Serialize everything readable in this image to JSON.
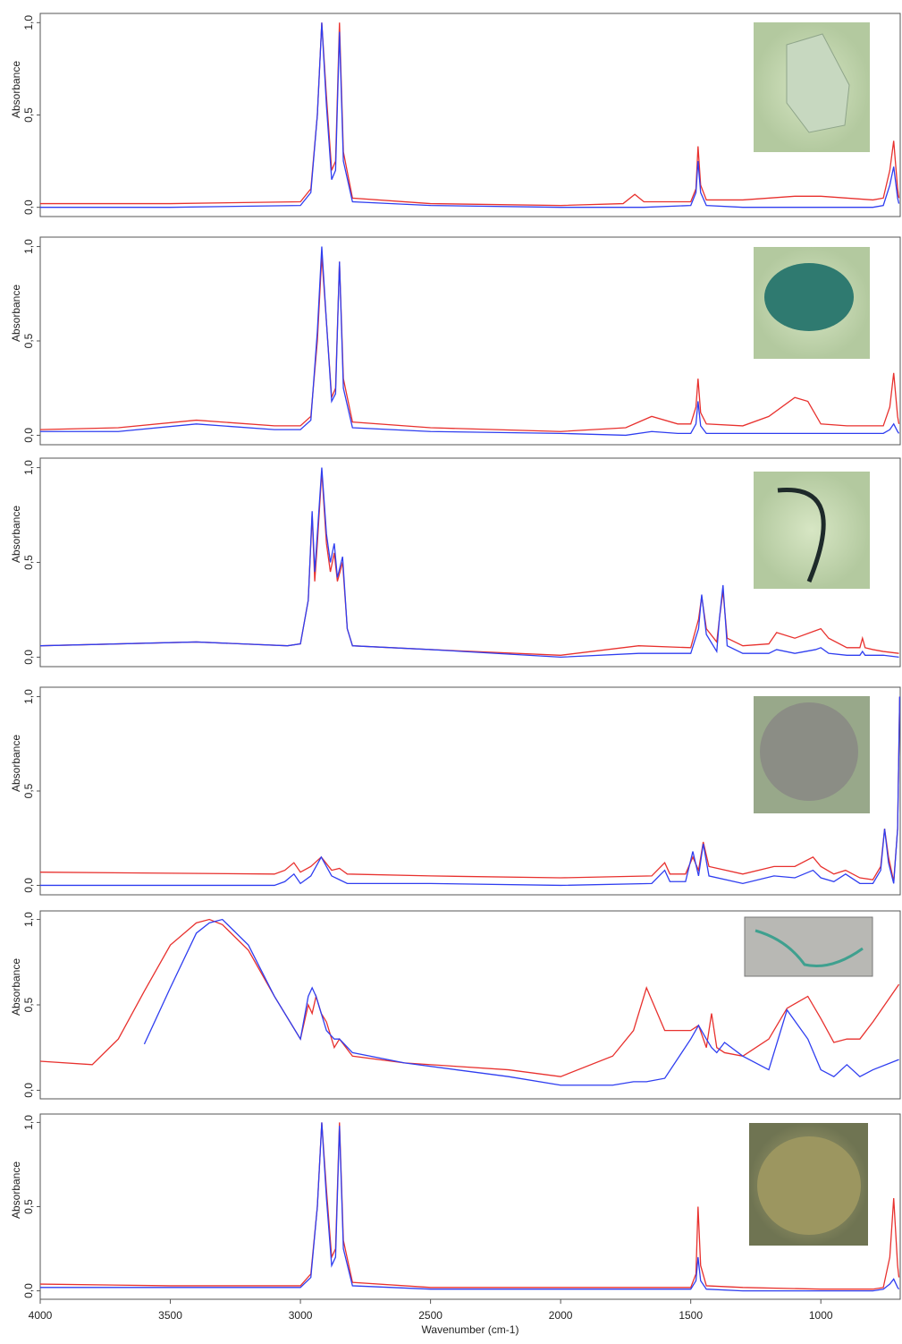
{
  "chart_data": [
    {
      "type": "line",
      "y_label": "Absorbance",
      "xlim": [
        4000,
        695
      ],
      "ylim": [
        -0.05,
        1.05
      ],
      "yticks": [
        {
          "value": 0,
          "label": "0,0"
        },
        {
          "value": 0.5,
          "label": "0,5"
        },
        {
          "value": 1,
          "label": "1,0"
        }
      ],
      "x": [
        4000,
        3500,
        3000,
        2960,
        2935,
        2918,
        2900,
        2880,
        2865,
        2850,
        2835,
        2800,
        2500,
        2000,
        1760,
        1715,
        1680,
        1500,
        1480,
        1472,
        1462,
        1440,
        1300,
        1100,
        1000,
        800,
        760,
        735,
        720,
        705,
        700
      ],
      "series": [
        {
          "color": "#e8312e",
          "values": [
            0.02,
            0.02,
            0.03,
            0.1,
            0.5,
            1.0,
            0.6,
            0.2,
            0.25,
            1.0,
            0.3,
            0.05,
            0.02,
            0.01,
            0.02,
            0.07,
            0.03,
            0.03,
            0.1,
            0.33,
            0.12,
            0.04,
            0.04,
            0.06,
            0.06,
            0.04,
            0.05,
            0.2,
            0.36,
            0.1,
            0.05
          ]
        },
        {
          "color": "#2f3ef0",
          "values": [
            0.0,
            0.0,
            0.01,
            0.08,
            0.5,
            1.0,
            0.55,
            0.15,
            0.2,
            0.95,
            0.25,
            0.03,
            0.01,
            0.0,
            0.0,
            0.0,
            0.0,
            0.01,
            0.08,
            0.25,
            0.08,
            0.01,
            0.0,
            0.0,
            0.0,
            0.0,
            0.01,
            0.12,
            0.22,
            0.05,
            0.02
          ]
        }
      ]
    },
    {
      "type": "line",
      "y_label": "Absorbance",
      "xlim": [
        4000,
        695
      ],
      "ylim": [
        -0.05,
        1.05
      ],
      "yticks": [
        {
          "value": 0,
          "label": "0,0"
        },
        {
          "value": 0.5,
          "label": "0,5"
        },
        {
          "value": 1,
          "label": "1,0"
        }
      ],
      "x": [
        4000,
        3700,
        3400,
        3100,
        3000,
        2960,
        2935,
        2918,
        2900,
        2880,
        2865,
        2850,
        2835,
        2800,
        2500,
        2000,
        1750,
        1650,
        1550,
        1500,
        1480,
        1472,
        1462,
        1440,
        1300,
        1200,
        1100,
        1050,
        1000,
        900,
        800,
        760,
        735,
        720,
        705,
        700
      ],
      "series": [
        {
          "color": "#e8312e",
          "values": [
            0.03,
            0.04,
            0.08,
            0.05,
            0.05,
            0.1,
            0.5,
            0.95,
            0.6,
            0.2,
            0.25,
            0.92,
            0.3,
            0.07,
            0.04,
            0.02,
            0.04,
            0.1,
            0.06,
            0.06,
            0.15,
            0.3,
            0.12,
            0.06,
            0.05,
            0.1,
            0.2,
            0.18,
            0.06,
            0.05,
            0.05,
            0.05,
            0.15,
            0.33,
            0.1,
            0.06
          ]
        },
        {
          "color": "#2f3ef0",
          "values": [
            0.02,
            0.02,
            0.06,
            0.03,
            0.03,
            0.08,
            0.55,
            1.0,
            0.6,
            0.18,
            0.22,
            0.92,
            0.25,
            0.04,
            0.02,
            0.01,
            0.0,
            0.02,
            0.01,
            0.01,
            0.06,
            0.18,
            0.05,
            0.01,
            0.01,
            0.01,
            0.01,
            0.01,
            0.01,
            0.01,
            0.01,
            0.01,
            0.03,
            0.06,
            0.02,
            0.01
          ]
        }
      ]
    },
    {
      "type": "line",
      "y_label": "Absorbance",
      "xlim": [
        4000,
        695
      ],
      "ylim": [
        -0.05,
        1.05
      ],
      "yticks": [
        {
          "value": 0,
          "label": "0,0"
        },
        {
          "value": 0.5,
          "label": "0,5"
        },
        {
          "value": 1,
          "label": "1,0"
        }
      ],
      "x": [
        4000,
        3400,
        3050,
        3000,
        2970,
        2955,
        2945,
        2935,
        2918,
        2900,
        2885,
        2870,
        2858,
        2838,
        2820,
        2800,
        2500,
        2000,
        1700,
        1500,
        1470,
        1458,
        1440,
        1400,
        1390,
        1376,
        1360,
        1300,
        1200,
        1170,
        1100,
        1020,
        1000,
        970,
        900,
        850,
        840,
        830,
        800,
        760,
        700
      ],
      "series": [
        {
          "color": "#e8312e",
          "values": [
            0.06,
            0.08,
            0.06,
            0.07,
            0.3,
            0.75,
            0.4,
            0.6,
            0.98,
            0.6,
            0.45,
            0.55,
            0.4,
            0.5,
            0.15,
            0.06,
            0.04,
            0.01,
            0.06,
            0.05,
            0.2,
            0.32,
            0.15,
            0.08,
            0.2,
            0.35,
            0.1,
            0.06,
            0.07,
            0.13,
            0.1,
            0.14,
            0.15,
            0.1,
            0.05,
            0.05,
            0.1,
            0.05,
            0.04,
            0.03,
            0.02
          ]
        },
        {
          "color": "#2f3ef0",
          "values": [
            0.06,
            0.08,
            0.06,
            0.07,
            0.3,
            0.77,
            0.45,
            0.65,
            1.0,
            0.65,
            0.5,
            0.6,
            0.42,
            0.53,
            0.15,
            0.06,
            0.04,
            0.0,
            0.02,
            0.02,
            0.15,
            0.33,
            0.12,
            0.03,
            0.2,
            0.38,
            0.06,
            0.02,
            0.02,
            0.04,
            0.02,
            0.04,
            0.05,
            0.02,
            0.01,
            0.01,
            0.03,
            0.01,
            0.01,
            0.01,
            0.0
          ]
        }
      ]
    },
    {
      "type": "line",
      "y_label": "Absorbance",
      "xlim": [
        4000,
        695
      ],
      "ylim": [
        -0.05,
        1.05
      ],
      "yticks": [
        {
          "value": 0,
          "label": "0,0"
        },
        {
          "value": 0.5,
          "label": "0,5"
        },
        {
          "value": 1,
          "label": "1,0"
        }
      ],
      "x": [
        4000,
        3100,
        3060,
        3025,
        3000,
        2960,
        2920,
        2880,
        2850,
        2820,
        2500,
        2000,
        1650,
        1600,
        1580,
        1520,
        1492,
        1470,
        1452,
        1430,
        1300,
        1180,
        1100,
        1030,
        1000,
        950,
        905,
        850,
        800,
        770,
        755,
        740,
        720,
        705,
        697
      ],
      "series": [
        {
          "color": "#e8312e",
          "values": [
            0.07,
            0.06,
            0.08,
            0.12,
            0.07,
            0.1,
            0.15,
            0.08,
            0.09,
            0.06,
            0.05,
            0.04,
            0.05,
            0.12,
            0.06,
            0.06,
            0.15,
            0.08,
            0.23,
            0.1,
            0.06,
            0.1,
            0.1,
            0.15,
            0.1,
            0.06,
            0.08,
            0.04,
            0.03,
            0.1,
            0.3,
            0.15,
            0.02,
            0.3,
            1.0
          ]
        },
        {
          "color": "#2f3ef0",
          "values": [
            0.0,
            0.0,
            0.02,
            0.06,
            0.01,
            0.05,
            0.15,
            0.05,
            0.03,
            0.01,
            0.01,
            0.0,
            0.01,
            0.08,
            0.02,
            0.02,
            0.18,
            0.05,
            0.22,
            0.05,
            0.01,
            0.05,
            0.04,
            0.08,
            0.04,
            0.02,
            0.06,
            0.01,
            0.01,
            0.08,
            0.3,
            0.12,
            0.01,
            0.3,
            1.0
          ]
        }
      ]
    },
    {
      "type": "line",
      "y_label": "Absorbance",
      "xlim": [
        4000,
        695
      ],
      "ylim": [
        -0.05,
        1.05
      ],
      "yticks": [
        {
          "value": 0,
          "label": "0,0"
        },
        {
          "value": 0.5,
          "label": "0,5"
        },
        {
          "value": 1,
          "label": "1,0"
        }
      ],
      "x": [
        4000,
        3800,
        3700,
        3600,
        3500,
        3400,
        3350,
        3300,
        3200,
        3100,
        3000,
        2970,
        2955,
        2940,
        2920,
        2900,
        2870,
        2850,
        2800,
        2600,
        2400,
        2200,
        2000,
        1800,
        1720,
        1670,
        1600,
        1500,
        1470,
        1440,
        1420,
        1400,
        1370,
        1300,
        1200,
        1130,
        1050,
        1000,
        950,
        900,
        850,
        800,
        700
      ],
      "series": [
        {
          "color": "#e8312e",
          "values": [
            0.17,
            0.15,
            0.3,
            0.58,
            0.85,
            0.98,
            1.0,
            0.97,
            0.82,
            0.55,
            0.3,
            0.5,
            0.45,
            0.55,
            0.45,
            0.4,
            0.25,
            0.3,
            0.2,
            0.16,
            0.14,
            0.12,
            0.08,
            0.2,
            0.35,
            0.6,
            0.35,
            0.35,
            0.38,
            0.25,
            0.45,
            0.25,
            0.22,
            0.2,
            0.3,
            0.48,
            0.55,
            0.42,
            0.28,
            0.3,
            0.3,
            0.4,
            0.62
          ]
        },
        {
          "color": "#2f3ef0",
          "values": [
            null,
            null,
            null,
            0.27,
            0.6,
            0.92,
            0.98,
            1.0,
            0.85,
            0.55,
            0.3,
            0.55,
            0.6,
            0.55,
            0.45,
            0.35,
            0.3,
            0.3,
            0.22,
            0.16,
            0.12,
            0.08,
            0.03,
            0.03,
            0.05,
            0.05,
            0.07,
            0.3,
            0.38,
            0.3,
            0.25,
            0.22,
            0.28,
            0.2,
            0.12,
            0.47,
            0.3,
            0.12,
            0.08,
            0.15,
            0.08,
            0.12,
            0.18
          ]
        }
      ]
    },
    {
      "type": "line",
      "y_label": "Absorbance",
      "x_label": "Wavenumber (cm-1)",
      "xlim": [
        4000,
        695
      ],
      "ylim": [
        -0.05,
        1.05
      ],
      "yticks": [
        {
          "value": 0,
          "label": "0,0"
        },
        {
          "value": 0.5,
          "label": "0,5"
        },
        {
          "value": 1,
          "label": "1,0"
        }
      ],
      "xticks": [
        4000,
        3500,
        3000,
        2500,
        2000,
        1500,
        1000
      ],
      "x": [
        4000,
        3500,
        3000,
        2960,
        2935,
        2918,
        2900,
        2880,
        2865,
        2850,
        2835,
        2800,
        2500,
        2000,
        1500,
        1480,
        1472,
        1462,
        1440,
        1300,
        1000,
        800,
        760,
        735,
        720,
        705,
        700
      ],
      "series": [
        {
          "color": "#e8312e",
          "values": [
            0.04,
            0.03,
            0.03,
            0.1,
            0.5,
            1.0,
            0.6,
            0.2,
            0.25,
            1.0,
            0.3,
            0.05,
            0.02,
            0.02,
            0.02,
            0.1,
            0.5,
            0.15,
            0.03,
            0.02,
            0.01,
            0.01,
            0.02,
            0.2,
            0.55,
            0.15,
            0.08
          ]
        },
        {
          "color": "#2f3ef0",
          "values": [
            0.02,
            0.02,
            0.02,
            0.08,
            0.5,
            1.0,
            0.55,
            0.15,
            0.2,
            0.98,
            0.25,
            0.03,
            0.01,
            0.01,
            0.01,
            0.06,
            0.2,
            0.06,
            0.01,
            0.0,
            0.0,
            0.0,
            0.01,
            0.04,
            0.07,
            0.02,
            0.01
          ]
        }
      ]
    }
  ]
}
